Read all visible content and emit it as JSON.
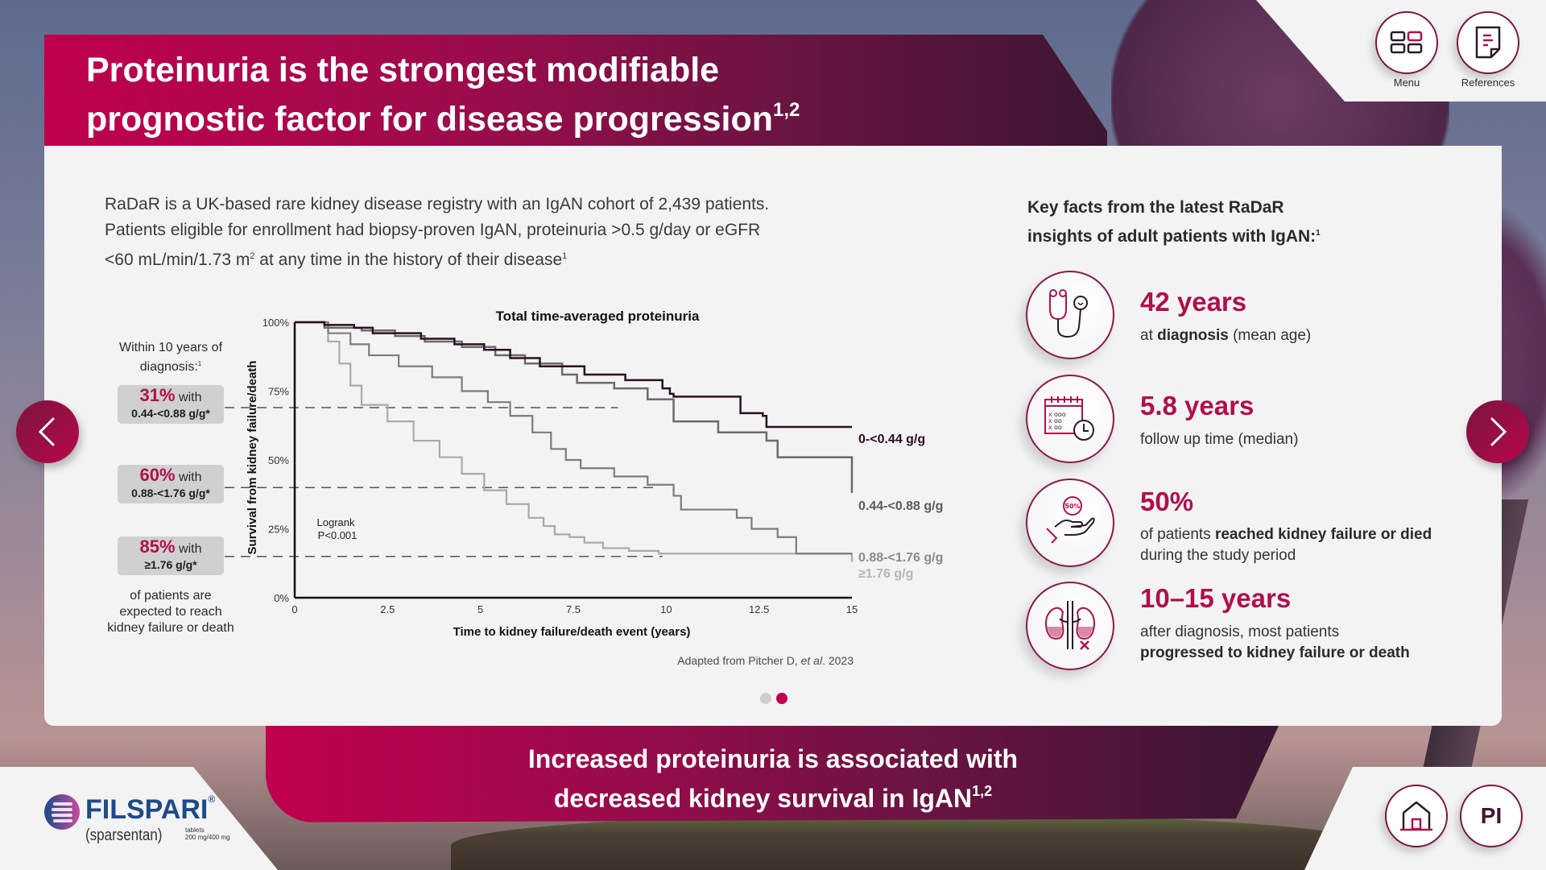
{
  "header": {
    "title_line1": "Proteinuria is the strongest modifiable",
    "title_line2": "prognostic factor for disease progression",
    "title_sup": "1,2"
  },
  "top_nav": {
    "menu_label": "Menu",
    "references_label": "References",
    "menu_icon": "grid-menu-icon",
    "references_icon": "document-icon"
  },
  "intro": {
    "line1": "RaDaR is a UK-based rare kidney disease registry with an IgAN cohort of 2,439 patients.",
    "line2": "Patients eligible for enrollment had biopsy-proven IgAN, proteinuria >0.5 g/day or eGFR",
    "line3_a": "<60 mL/min/1.73 m",
    "line3_sup": "2",
    "line3_b": " at any time in the history of their disease",
    "line3_ref": "1"
  },
  "left_stats": {
    "intro": "Within 10 years of diagnosis:",
    "intro_ref": "1",
    "items": [
      {
        "pct": "31%",
        "with": " with",
        "range": "0.44-<0.88 g/g*"
      },
      {
        "pct": "60%",
        "with": " with",
        "range": "0.88-<1.76 g/g*"
      },
      {
        "pct": "85%",
        "with": " with",
        "range": "≥1.76 g/g*"
      }
    ],
    "outro_line1": "of patients are",
    "outro_line2": "expected to reach",
    "outro_line3": "kidney failure or death"
  },
  "chart_data": {
    "type": "line",
    "subtype": "kaplan-meier step",
    "title": "Total time-averaged proteinuria",
    "xlabel": "Time to kidney failure/death event (years)",
    "ylabel": "Survival from kidney failure/death",
    "xlim": [
      0,
      15
    ],
    "ylim": [
      0,
      100
    ],
    "x_ticks": [
      "0",
      "2.5",
      "5",
      "7.5",
      "10",
      "12.5",
      "15"
    ],
    "y_ticks": [
      "0%",
      "25%",
      "50%",
      "75%",
      "100%"
    ],
    "annotation_line1": "Logrank",
    "annotation_line2": "P<0.001",
    "reference_lines_pct": [
      69,
      40,
      15
    ],
    "series": [
      {
        "name": "0-<0.44 g/g",
        "color": "#2a0f22",
        "points": [
          [
            0,
            100
          ],
          [
            0.7,
            100
          ],
          [
            0.8,
            99
          ],
          [
            1.6,
            98
          ],
          [
            2.1,
            96
          ],
          [
            3.4,
            94
          ],
          [
            4.3,
            92
          ],
          [
            5.1,
            90
          ],
          [
            5.8,
            87
          ],
          [
            6.6,
            84
          ],
          [
            7.8,
            81
          ],
          [
            8.9,
            79
          ],
          [
            9.9,
            76
          ],
          [
            10.1,
            74
          ],
          [
            10.2,
            73
          ],
          [
            12,
            73
          ],
          [
            12.0,
            67
          ],
          [
            12.6,
            66
          ],
          [
            12.7,
            62
          ],
          [
            15,
            62
          ]
        ]
      },
      {
        "name": "0.44-<0.88 g/g",
        "color": "#6a6a6a",
        "points": [
          [
            0,
            100
          ],
          [
            0.6,
            100
          ],
          [
            0.8,
            98
          ],
          [
            1.8,
            97
          ],
          [
            2.7,
            95
          ],
          [
            3.5,
            93
          ],
          [
            4.5,
            91
          ],
          [
            5.4,
            88
          ],
          [
            6.2,
            85
          ],
          [
            7.2,
            81
          ],
          [
            7.6,
            78
          ],
          [
            8.6,
            76
          ],
          [
            9.5,
            72
          ],
          [
            10.2,
            70
          ],
          [
            10.2,
            64
          ],
          [
            11.4,
            64
          ],
          [
            11.4,
            60
          ],
          [
            12.6,
            60
          ],
          [
            12.7,
            57
          ],
          [
            13.0,
            57
          ],
          [
            13.0,
            51
          ],
          [
            15,
            51
          ],
          [
            15,
            38
          ]
        ]
      },
      {
        "name": "0.88-<1.76 g/g",
        "color": "#7c7c7c",
        "points": [
          [
            0,
            100
          ],
          [
            0.6,
            100
          ],
          [
            0.9,
            96
          ],
          [
            1.5,
            92
          ],
          [
            2.0,
            88
          ],
          [
            2.8,
            84
          ],
          [
            3.7,
            80
          ],
          [
            4.5,
            75
          ],
          [
            5.2,
            71
          ],
          [
            5.8,
            66
          ],
          [
            6.4,
            60
          ],
          [
            6.9,
            54
          ],
          [
            7.3,
            50
          ],
          [
            7.7,
            47
          ],
          [
            8.6,
            44
          ],
          [
            9.5,
            41
          ],
          [
            10.2,
            37
          ],
          [
            10.4,
            32
          ],
          [
            11.9,
            32
          ],
          [
            11.9,
            29
          ],
          [
            12.2,
            29
          ],
          [
            12.3,
            25
          ],
          [
            13.0,
            25
          ],
          [
            13.0,
            22
          ],
          [
            13.5,
            22
          ],
          [
            13.5,
            16
          ],
          [
            15,
            16
          ]
        ]
      },
      {
        "name": "≥1.76 g/g",
        "color": "#a9a9a9",
        "points": [
          [
            0,
            100
          ],
          [
            0.6,
            100
          ],
          [
            0.9,
            93
          ],
          [
            1.2,
            85
          ],
          [
            1.5,
            77
          ],
          [
            1.8,
            70
          ],
          [
            2.5,
            64
          ],
          [
            3.2,
            57
          ],
          [
            3.9,
            51
          ],
          [
            4.5,
            45
          ],
          [
            5.1,
            39
          ],
          [
            5.7,
            34
          ],
          [
            6.3,
            29
          ],
          [
            6.7,
            26
          ],
          [
            7.0,
            23
          ],
          [
            7.4,
            22
          ],
          [
            7.8,
            20
          ],
          [
            8.3,
            18
          ],
          [
            9.0,
            17
          ],
          [
            9.8,
            16
          ],
          [
            15,
            16
          ],
          [
            15,
            13
          ]
        ]
      }
    ]
  },
  "source": {
    "prefix": "Adapted from Pitcher D, ",
    "italic": "et al",
    "suffix": ". 2023"
  },
  "carousel": {
    "prev_icon": "chevron-left-icon",
    "next_icon": "chevron-right-icon",
    "total_pages": 2,
    "current_page": 2
  },
  "key_facts": {
    "title_line1": "Key facts from the latest RaDaR",
    "title_line2": "insights of adult patients with IgAN:",
    "title_ref": "1",
    "items": [
      {
        "icon": "stethoscope-icon",
        "value": "42 years",
        "desc_a": "at ",
        "desc_bold": "diagnosis",
        "desc_b": " (mean age)"
      },
      {
        "icon": "calendar-clock-icon",
        "value": "5.8 years",
        "desc_a": "follow up time (median)",
        "desc_bold": "",
        "desc_b": ""
      },
      {
        "icon": "hand-percent-icon",
        "icon_text": "50%",
        "value": "50%",
        "desc_a": "of patients ",
        "desc_bold": "reached kidney failure or died",
        "desc_b": " during the study period"
      },
      {
        "icon": "kidney-icon",
        "value": "10–15 years",
        "desc_a": "after diagnosis, most patients ",
        "desc_bold": "progressed to kidney failure or death",
        "desc_b": ""
      }
    ]
  },
  "bottom_banner": {
    "line1": "Increased proteinuria is associated with",
    "line2": "decreased kidney survival in IgAN",
    "sup": "1,2"
  },
  "brand": {
    "name": "FILSPARI",
    "reg": "®",
    "generic": "(sparsentan)",
    "form": "tablets",
    "dose": "200 mg/400 mg",
    "colors": {
      "primary": "#1d4a8a",
      "accent": "#b0104a"
    }
  },
  "bottom_nav": {
    "home_icon": "home-icon",
    "pi_label": "PI"
  },
  "colors": {
    "accent": "#b0104a",
    "banner_start": "#c0004e",
    "banner_end": "#3d1632",
    "card_bg": "#f3f3f3"
  }
}
